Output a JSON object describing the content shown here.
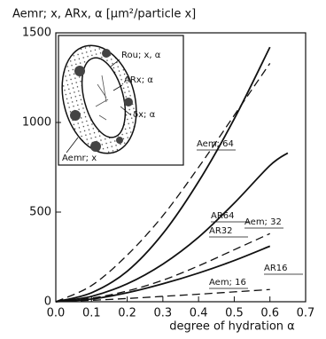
{
  "chart_data": {
    "type": "line",
    "title": "Aemr; x, ARx, α [μm²/particle x]",
    "x_label": "degree of hydration α",
    "x": [
      0,
      0.1,
      0.2,
      0.3,
      0.4,
      0.5,
      0.6,
      0.65
    ],
    "series": [
      {
        "name": "AR64",
        "color": "#111111",
        "linestyle": "solid",
        "values": [
          0,
          50,
          170,
          380,
          670,
          1020,
          1420,
          null
        ]
      },
      {
        "name": "Aem; 64",
        "color": "#111111",
        "linestyle": "dashed",
        "values": [
          0,
          90,
          260,
          480,
          750,
          1040,
          1330,
          null
        ]
      },
      {
        "name": "AR32",
        "color": "#111111",
        "linestyle": "solid",
        "values": [
          0,
          30,
          100,
          210,
          360,
          550,
          760,
          830
        ]
      },
      {
        "name": "Aem; 32",
        "color": "#111111",
        "linestyle": "dashed",
        "values": [
          0,
          20,
          60,
          120,
          200,
          290,
          380,
          null
        ]
      },
      {
        "name": "AR16",
        "color": "#111111",
        "linestyle": "solid",
        "values": [
          0,
          15,
          50,
          100,
          160,
          230,
          310,
          null
        ]
      },
      {
        "name": "Aem; 16",
        "color": "#111111",
        "linestyle": "dashed",
        "values": [
          0,
          8,
          18,
          30,
          42,
          55,
          68,
          null
        ]
      }
    ],
    "annotations": [
      "Rou; x, α",
      "ARx; α",
      "δx; α",
      "Aemr; x"
    ],
    "xlim": [
      0,
      0.7
    ],
    "xticks": [
      {
        "value": 0,
        "label": "0.0"
      },
      0.1,
      0.2,
      0.3,
      0.4,
      0.5,
      0.6,
      0.7
    ],
    "ylim": [
      0,
      1500
    ],
    "yticks": [
      0,
      500,
      1000,
      1500
    ],
    "grid": false
  }
}
